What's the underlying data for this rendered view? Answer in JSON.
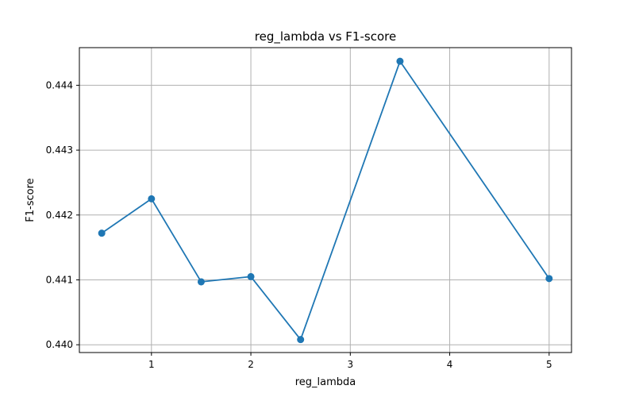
{
  "chart_data": {
    "type": "line",
    "title": "reg_lambda vs F1-score",
    "xlabel": "reg_lambda",
    "ylabel": "F1-score",
    "x": [
      0.5,
      1.0,
      1.5,
      2.0,
      2.5,
      3.5,
      5.0
    ],
    "series": [
      {
        "values": [
          0.44172,
          0.44225,
          0.44097,
          0.44105,
          0.44008,
          0.44437,
          0.44102
        ],
        "color": "#1f77b4",
        "marker": "circle"
      }
    ],
    "xlim": [
      0.275,
      5.225
    ],
    "ylim": [
      0.43988,
      0.44458
    ],
    "xticks": [
      1,
      2,
      3,
      4,
      5
    ],
    "yticks": [
      0.44,
      0.441,
      0.442,
      0.443,
      0.444
    ],
    "xtick_labels": [
      "1",
      "2",
      "3",
      "4",
      "5"
    ],
    "ytick_labels": [
      "0.440",
      "0.441",
      "0.442",
      "0.443",
      "0.444"
    ],
    "grid": true,
    "legend": "none"
  }
}
